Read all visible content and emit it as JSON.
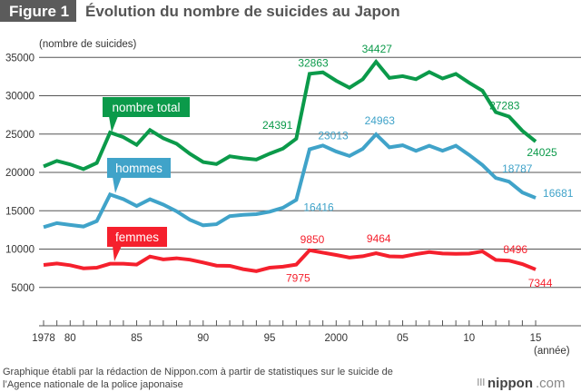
{
  "header": {
    "figure_label": "Figure 1",
    "title": "Évolution du nombre de suicides au Japon"
  },
  "footer": {
    "source_line1": "Graphique établi par la rédaction de Nippon.com à partir de statistiques sur le suicide de",
    "source_line2": "l’Agence nationale de la police japonaise",
    "logo_main": "nippon",
    "logo_suffix": ".com"
  },
  "colors": {
    "total": "#0b9a4a",
    "men": "#40a3c9",
    "women": "#f5202d",
    "header_box": "#5b5b5b",
    "title": "#555555",
    "grid": "#555555"
  },
  "chart_data": {
    "type": "line",
    "ylabel": "(nombre de suicides)",
    "xlabel": "(année)",
    "ylim": [
      0,
      35000
    ],
    "yticks": [
      5000,
      10000,
      15000,
      20000,
      25000,
      30000,
      35000
    ],
    "xlim": [
      1978,
      2015
    ],
    "xtick_labels": [
      {
        "year": 1978,
        "label": "1978"
      },
      {
        "year": 1980,
        "label": "80"
      },
      {
        "year": 1985,
        "label": "85"
      },
      {
        "year": 1990,
        "label": "90"
      },
      {
        "year": 1995,
        "label": "95"
      },
      {
        "year": 2000,
        "label": "2000"
      },
      {
        "year": 2005,
        "label": "05"
      },
      {
        "year": 2010,
        "label": "10"
      },
      {
        "year": 2015,
        "label": "15"
      }
    ],
    "grid": true,
    "x": [
      1978,
      1979,
      1980,
      1981,
      1982,
      1983,
      1984,
      1985,
      1986,
      1987,
      1988,
      1989,
      1990,
      1991,
      1992,
      1993,
      1994,
      1995,
      1996,
      1997,
      1998,
      1999,
      2000,
      2001,
      2002,
      2003,
      2004,
      2005,
      2006,
      2007,
      2008,
      2009,
      2010,
      2011,
      2012,
      2013,
      2014,
      2015
    ],
    "series": [
      {
        "key": "total",
        "name": "nombre total",
        "values": [
          20788,
          21503,
          21048,
          20434,
          21228,
          25202,
          24596,
          23599,
          25524,
          24460,
          23742,
          22436,
          21346,
          21084,
          22104,
          21851,
          21679,
          22445,
          23104,
          24391,
          32863,
          33048,
          31957,
          31042,
          32143,
          34427,
          32325,
          32552,
          32155,
          33093,
          32249,
          32845,
          31690,
          30651,
          27858,
          27283,
          25427,
          24025
        ]
      },
      {
        "key": "men",
        "name": "hommes",
        "values": [
          12859,
          13386,
          13155,
          12942,
          13654,
          17116,
          16508,
          15624,
          16497,
          15802,
          14934,
          13818,
          13102,
          13242,
          14296,
          14468,
          14560,
          14874,
          15393,
          16416,
          23013,
          23512,
          22727,
          22144,
          23080,
          24963,
          23272,
          23540,
          22813,
          23478,
          22831,
          23472,
          22283,
          20955,
          19273,
          18787,
          17386,
          16681
        ]
      },
      {
        "key": "women",
        "name": "femmes",
        "values": [
          7929,
          8117,
          7893,
          7492,
          7574,
          8086,
          8088,
          7975,
          9027,
          8658,
          8808,
          8618,
          8244,
          7842,
          7808,
          7383,
          7119,
          7571,
          7711,
          7975,
          9850,
          9536,
          9230,
          8898,
          9063,
          9464,
          9053,
          9012,
          9342,
          9615,
          9418,
          9373,
          9407,
          9696,
          8585,
          8496,
          8041,
          7344
        ]
      }
    ],
    "data_labels": [
      {
        "series": "total",
        "year": 1997,
        "text": "24391"
      },
      {
        "series": "total",
        "year": 1998,
        "text": "32863"
      },
      {
        "series": "total",
        "year": 2003,
        "text": "34427"
      },
      {
        "series": "total",
        "year": 2013,
        "text": "27283"
      },
      {
        "series": "total",
        "year": 2015,
        "text": "24025"
      },
      {
        "series": "men",
        "year": 1997,
        "text": "16416"
      },
      {
        "series": "men",
        "year": 1998,
        "text": "23013"
      },
      {
        "series": "men",
        "year": 2003,
        "text": "24963"
      },
      {
        "series": "men",
        "year": 2013,
        "text": "18787"
      },
      {
        "series": "men",
        "year": 2015,
        "text": "16681"
      },
      {
        "series": "women",
        "year": 1997,
        "text": "7975"
      },
      {
        "series": "women",
        "year": 1998,
        "text": "9850"
      },
      {
        "series": "women",
        "year": 2003,
        "text": "9464"
      },
      {
        "series": "women",
        "year": 2013,
        "text": "8496"
      },
      {
        "series": "women",
        "year": 2015,
        "text": "7344"
      }
    ]
  }
}
